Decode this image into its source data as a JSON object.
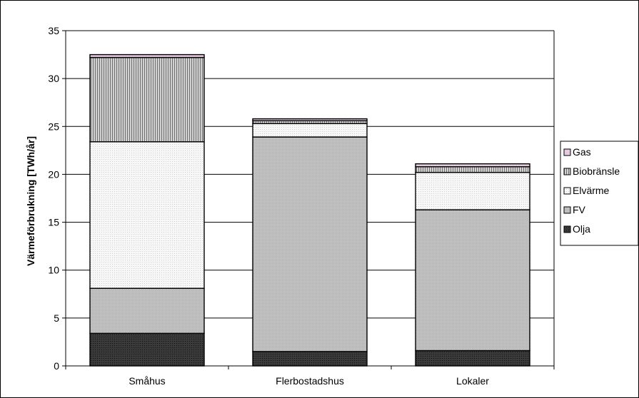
{
  "chart_data": {
    "type": "bar",
    "stacked": true,
    "title": "",
    "xlabel": "",
    "ylabel": "Värmeförbrukning [TWh/år]",
    "ylim": [
      0,
      35
    ],
    "yticks": [
      0,
      5,
      10,
      15,
      20,
      25,
      30,
      35
    ],
    "grid": true,
    "legend_position": "right",
    "categories": [
      "Småhus",
      "Flerbostadshus",
      "Lokaler"
    ],
    "series": [
      {
        "name": "Olja",
        "values": [
          3.4,
          1.5,
          1.6
        ],
        "color": "#333333"
      },
      {
        "name": "FV",
        "values": [
          4.7,
          22.4,
          14.7
        ],
        "color": "#c0c0c0"
      },
      {
        "name": "Elvärme",
        "values": [
          15.3,
          1.4,
          3.9
        ],
        "color": "#f4f4f4"
      },
      {
        "name": "Biobränsle",
        "values": [
          8.8,
          0.3,
          0.6
        ],
        "color": "#a8a8a8"
      },
      {
        "name": "Gas",
        "values": [
          0.3,
          0.2,
          0.3
        ],
        "color": "#e8c8e0"
      }
    ]
  }
}
